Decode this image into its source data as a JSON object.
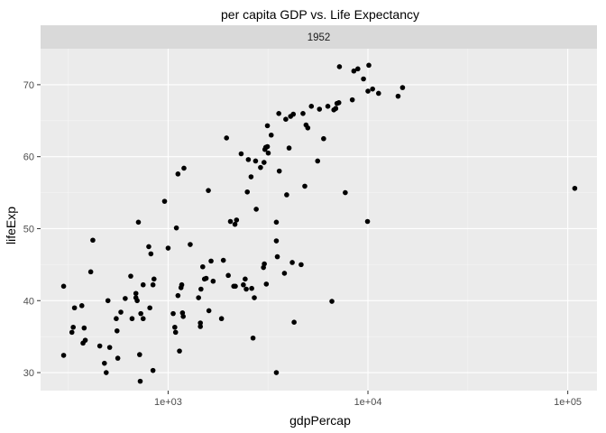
{
  "chart_data": {
    "type": "scatter",
    "title": "per capita GDP vs. Life Expectancy",
    "facet_label": "1952",
    "xlabel": "gdpPercap",
    "ylabel": "lifeExp",
    "x_scale": "log10",
    "xlim": [
      230,
      140000
    ],
    "ylim": [
      27.5,
      75
    ],
    "x_ticks": [
      {
        "value": 1000,
        "label": "1e+03"
      },
      {
        "value": 10000,
        "label": "1e+04"
      },
      {
        "value": 100000,
        "label": "1e+05"
      }
    ],
    "y_ticks": [
      {
        "value": 30,
        "label": "30"
      },
      {
        "value": 40,
        "label": "40"
      },
      {
        "value": 50,
        "label": "50"
      },
      {
        "value": 60,
        "label": "60"
      },
      {
        "value": 70,
        "label": "70"
      }
    ],
    "grid": true,
    "colors": {
      "panel_bg": "#ebebeb",
      "strip_bg": "#d9d9d9",
      "grid_major": "#ffffff",
      "grid_minor": "#f5f5f5",
      "point": "#000000"
    },
    "points": [
      [
        300,
        32.4
      ],
      [
        300,
        42
      ],
      [
        330,
        35.6
      ],
      [
        335,
        36.3
      ],
      [
        340,
        39
      ],
      [
        370,
        39.3
      ],
      [
        375,
        34.1
      ],
      [
        380,
        36.2
      ],
      [
        385,
        34.5
      ],
      [
        410,
        44
      ],
      [
        420,
        48.4
      ],
      [
        455,
        33.7
      ],
      [
        480,
        31.3
      ],
      [
        490,
        30
      ],
      [
        500,
        40
      ],
      [
        510,
        33.5
      ],
      [
        550,
        37.5
      ],
      [
        555,
        35.8
      ],
      [
        560,
        32
      ],
      [
        580,
        38.4
      ],
      [
        610,
        40.3
      ],
      [
        650,
        43.4
      ],
      [
        660,
        37.5
      ],
      [
        690,
        41
      ],
      [
        690,
        40.4
      ],
      [
        700,
        40
      ],
      [
        710,
        50.9
      ],
      [
        720,
        32.5
      ],
      [
        725,
        28.8
      ],
      [
        730,
        38.2
      ],
      [
        750,
        37.5
      ],
      [
        750,
        42.2
      ],
      [
        800,
        47.5
      ],
      [
        810,
        39
      ],
      [
        820,
        46.5
      ],
      [
        840,
        42.2
      ],
      [
        840,
        30.3
      ],
      [
        850,
        43
      ],
      [
        960,
        53.8
      ],
      [
        1000,
        47.3
      ],
      [
        1060,
        38.2
      ],
      [
        1080,
        36.3
      ],
      [
        1090,
        35.6
      ],
      [
        1100,
        50.1
      ],
      [
        1120,
        57.6
      ],
      [
        1120,
        40.7
      ],
      [
        1140,
        33
      ],
      [
        1160,
        41.8
      ],
      [
        1170,
        42.2
      ],
      [
        1180,
        38.3
      ],
      [
        1190,
        37.8
      ],
      [
        1200,
        58.4
      ],
      [
        1290,
        47.8
      ],
      [
        1420,
        40.4
      ],
      [
        1450,
        36.9
      ],
      [
        1450,
        36.4
      ],
      [
        1460,
        41.6
      ],
      [
        1490,
        44.7
      ],
      [
        1520,
        43
      ],
      [
        1550,
        43.1
      ],
      [
        1590,
        55.3
      ],
      [
        1600,
        38.6
      ],
      [
        1640,
        45.5
      ],
      [
        1680,
        42.7
      ],
      [
        1850,
        37.5
      ],
      [
        1890,
        45.6
      ],
      [
        1960,
        62.6
      ],
      [
        2000,
        43.5
      ],
      [
        2050,
        51
      ],
      [
        2130,
        42
      ],
      [
        2160,
        50.6
      ],
      [
        2170,
        42
      ],
      [
        2200,
        51.2
      ],
      [
        2320,
        60.4
      ],
      [
        2380,
        42.2
      ],
      [
        2430,
        43
      ],
      [
        2460,
        41.6
      ],
      [
        2490,
        55.1
      ],
      [
        2520,
        59.6
      ],
      [
        2600,
        57.2
      ],
      [
        2620,
        41.7
      ],
      [
        2660,
        34.8
      ],
      [
        2700,
        40.4
      ],
      [
        2740,
        59.4
      ],
      [
        2760,
        52.7
      ],
      [
        2900,
        58.5
      ],
      [
        3000,
        44.6
      ],
      [
        3020,
        59.2
      ],
      [
        3030,
        45.1
      ],
      [
        3050,
        61
      ],
      [
        3080,
        61.3
      ],
      [
        3100,
        42.3
      ],
      [
        3140,
        61.4
      ],
      [
        3140,
        64.3
      ],
      [
        3170,
        60.5
      ],
      [
        3280,
        63
      ],
      [
        3480,
        50.9
      ],
      [
        3480,
        48.3
      ],
      [
        3480,
        30
      ],
      [
        3520,
        46.1
      ],
      [
        3580,
        66
      ],
      [
        3600,
        58
      ],
      [
        3820,
        43.8
      ],
      [
        3880,
        65.2
      ],
      [
        3920,
        54.7
      ],
      [
        4030,
        61.2
      ],
      [
        4100,
        65.6
      ],
      [
        4180,
        45.3
      ],
      [
        4230,
        65.9
      ],
      [
        4270,
        37
      ],
      [
        4630,
        45
      ],
      [
        4730,
        66
      ],
      [
        4830,
        55.9
      ],
      [
        4900,
        64.4
      ],
      [
        5000,
        64
      ],
      [
        5210,
        67
      ],
      [
        5600,
        59.4
      ],
      [
        5720,
        66.6
      ],
      [
        6000,
        62.5
      ],
      [
        6300,
        67
      ],
      [
        6600,
        39.9
      ],
      [
        6750,
        66.5
      ],
      [
        6900,
        66.7
      ],
      [
        7000,
        67.4
      ],
      [
        7150,
        67.5
      ],
      [
        7200,
        72.5
      ],
      [
        7700,
        55
      ],
      [
        8350,
        67.9
      ],
      [
        8500,
        71.9
      ],
      [
        8900,
        72.2
      ],
      [
        9500,
        70.8
      ],
      [
        9950,
        51
      ],
      [
        10000,
        69.1
      ],
      [
        10100,
        72.7
      ],
      [
        10550,
        69.4
      ],
      [
        11300,
        68.8
      ],
      [
        14150,
        68.4
      ],
      [
        14900,
        69.6
      ],
      [
        108400,
        55.6
      ]
    ]
  }
}
